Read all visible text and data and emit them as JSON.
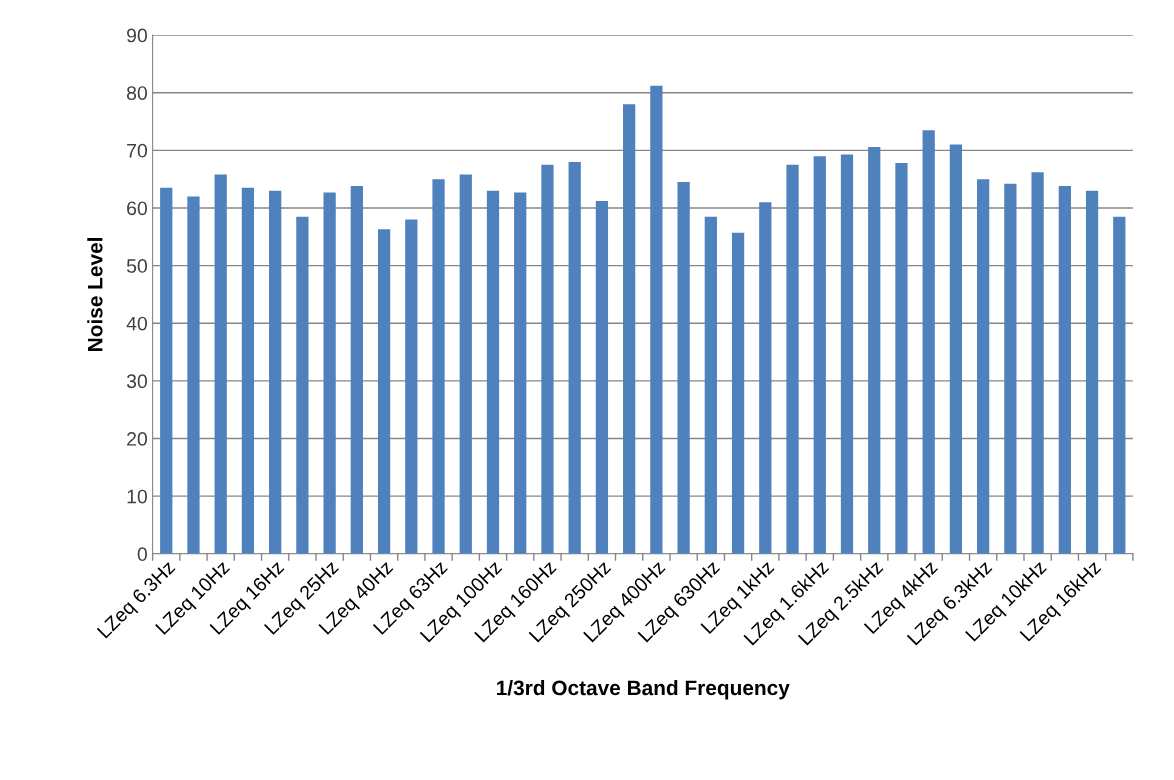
{
  "chart_data": {
    "type": "bar",
    "xlabel": "1/3rd Octave Band Frequency",
    "ylabel": "Noise Level",
    "categories": [
      "LZeq 6.3Hz",
      null,
      "LZeq 10Hz",
      null,
      "LZeq 16Hz",
      null,
      "LZeq 25Hz",
      null,
      "LZeq 40Hz",
      null,
      "LZeq 63Hz",
      null,
      "LZeq 100Hz",
      null,
      "LZeq 160Hz",
      null,
      "LZeq 250Hz",
      null,
      "LZeq 400Hz",
      null,
      "LZeq 630Hz",
      null,
      "LZeq 1kHz",
      null,
      "LZeq 1.6kHz",
      null,
      "LZeq 2.5kHz",
      null,
      "LZeq 4kHz",
      null,
      "LZeq 6.3kHz",
      null,
      "LZeq 10kHz",
      null,
      "LZeq 16kHz",
      null
    ],
    "values": [
      63.5,
      62,
      65.8,
      63.5,
      63,
      58.5,
      62.7,
      63.8,
      56.3,
      58,
      65,
      65.8,
      63,
      62.7,
      67.5,
      68,
      61.2,
      78,
      81.2,
      64.5,
      58.5,
      55.7,
      61,
      67.5,
      69,
      69.3,
      70.6,
      67.8,
      73.5,
      71,
      65,
      64.2,
      66.2,
      63.8,
      63,
      58.5
    ],
    "color": "#4f81bd",
    "ylim": [
      0,
      90
    ],
    "yticks": [
      0,
      10,
      20,
      30,
      40,
      50,
      60,
      70,
      80,
      90
    ],
    "grid": "y",
    "legend": false
  }
}
